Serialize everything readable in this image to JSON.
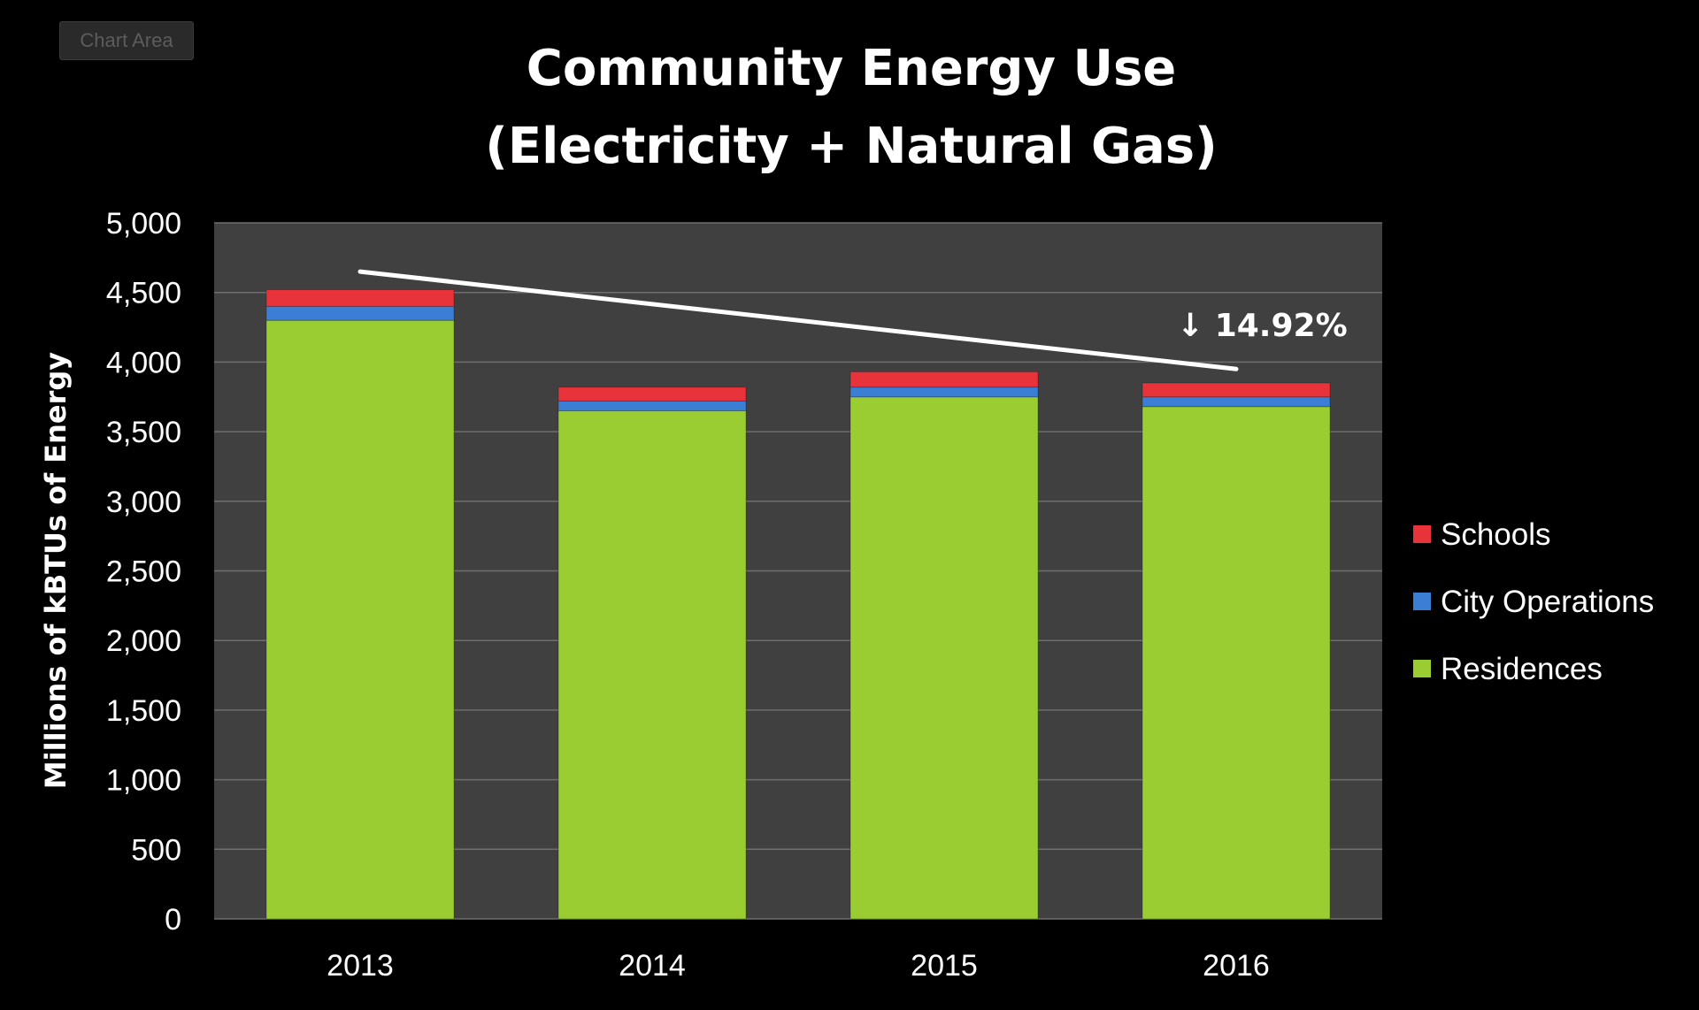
{
  "chart_area_label": "Chart Area",
  "chart_data": {
    "type": "bar",
    "stacked": true,
    "title": [
      "Community Energy Use",
      "(Electricity + Natural Gas)"
    ],
    "xlabel": "",
    "ylabel": "Millions of kBTUs of Energy",
    "categories": [
      "2013",
      "2014",
      "2015",
      "2016"
    ],
    "ylim": [
      0,
      5000
    ],
    "yticks": [
      "0",
      "500",
      "1,000",
      "1,500",
      "2,000",
      "2,500",
      "3,000",
      "3,500",
      "4,000",
      "4,500",
      "5,000"
    ],
    "ytick_values": [
      0,
      500,
      1000,
      1500,
      2000,
      2500,
      3000,
      3500,
      4000,
      4500,
      5000
    ],
    "grid": true,
    "legend_position": "right",
    "series": [
      {
        "name": "Residences",
        "color": "#9acd32",
        "values": [
          4300,
          3650,
          3750,
          3680
        ]
      },
      {
        "name": "City Operations",
        "color": "#3a7fd5",
        "values": [
          100,
          70,
          70,
          70
        ]
      },
      {
        "name": "Schools",
        "color": "#e8333a",
        "values": [
          120,
          100,
          110,
          100
        ]
      }
    ],
    "legend_order": [
      "Schools",
      "City Operations",
      "Residences"
    ],
    "trendline": {
      "from": {
        "x": "2013",
        "y": 4650
      },
      "to": {
        "x": "2016",
        "y": 3950
      },
      "color": "#ffffff"
    },
    "annotation": {
      "text": "↓ 14.92%"
    }
  }
}
